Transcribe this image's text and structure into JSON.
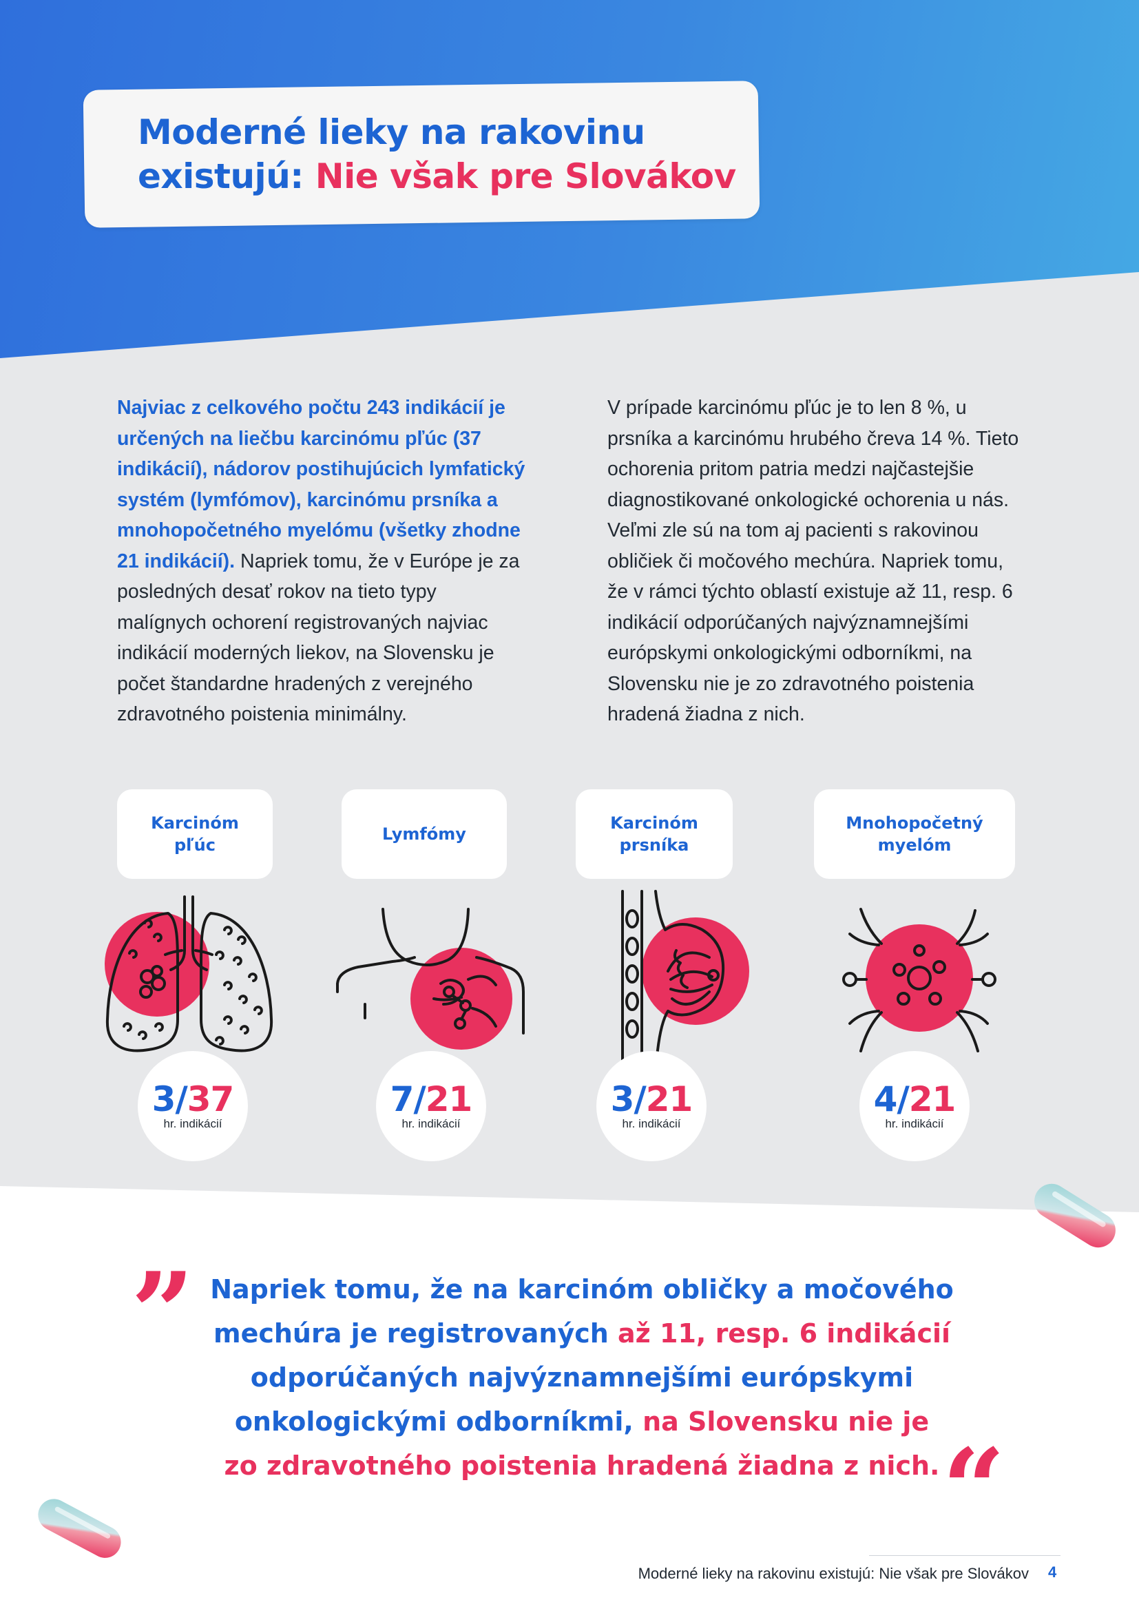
{
  "title": {
    "line1": "Moderné lieky na rakovinu",
    "line2_blue": "existujú:",
    "line2_pink": "Nie však pre Slovákov"
  },
  "body": {
    "left_highlight": "Najviac z celkového počtu 243 indikácií je určených na liečbu karcinómu pľúc (37 indikácií), nádorov postihujúcich lymfatický systém (lymfómov), karcinómu prsníka a mnohopočetného myelómu (všetky zhodne 21 indikácií).",
    "left_rest": "Napriek tomu, že v Európe je za posledných desať rokov na tieto typy malígnych ochorení registrovaných najviac indikácií moderných liekov, na Slovensku je počet štandardne hradených z verejného zdravotného poistenia minimálny.",
    "right": "V prípade karcinómu pľúc je to len 8 %, u prsníka a karcinómu hrubého čreva 14 %. Tieto ochorenia pritom patria medzi najčastejšie diagnostikované onkologické ochorenia u nás. Veľmi zle sú na tom aj pacienti s rakovinou obličiek či močového mechúra. Napriek tomu, že v rámci týchto oblastí existuje až 11, resp. 6 indikácií odporúčaných najvýznamnejšími európskymi onkologickými odborníkmi, na Slovensku nie je zo zdravotného poistenia hradená žiadna z nich."
  },
  "cancers": [
    {
      "label_l1": "Karcinóm",
      "label_l2": "pľúc",
      "icon": "lungs-icon",
      "covered": "3/",
      "total": "37",
      "caption": "hr. indikácií"
    },
    {
      "label_l1": "Lymfómy",
      "label_l2": "",
      "icon": "lymph-node-icon",
      "covered": "7/",
      "total": "21",
      "caption": "hr. indikácií"
    },
    {
      "label_l1": "Karcinóm",
      "label_l2": "prsníka",
      "icon": "breast-icon",
      "covered": "3/",
      "total": "21",
      "caption": "hr. indikácií"
    },
    {
      "label_l1": "Mnohopočetný",
      "label_l2": "myelóm",
      "icon": "cell-icon",
      "covered": "4/",
      "total": "21",
      "caption": "hr. indikácií"
    }
  ],
  "quote": {
    "p1": "Napriek tomu, že na karcinóm obličky a močového",
    "p2a": "mechúra je registrovaných ",
    "p2b": "až 11, resp. 6 indikácií",
    "p3": "odporúčaných najvýznamnejšími európskymi",
    "p4a": "onkologickými odborníkmi, ",
    "p4b": "na Slovensku nie je",
    "p5": "zo zdravotného poistenia hradená žiadna z nich.",
    "open_mark": "”",
    "close_mark": "“"
  },
  "footer": {
    "text": "Moderné lieky na rakovinu existujú: Nie však pre Slovákov",
    "page": "4"
  },
  "colors": {
    "brand_blue": "#1d64d3",
    "accent_pink": "#e8315e",
    "panel_grey": "#e7e8ea"
  }
}
